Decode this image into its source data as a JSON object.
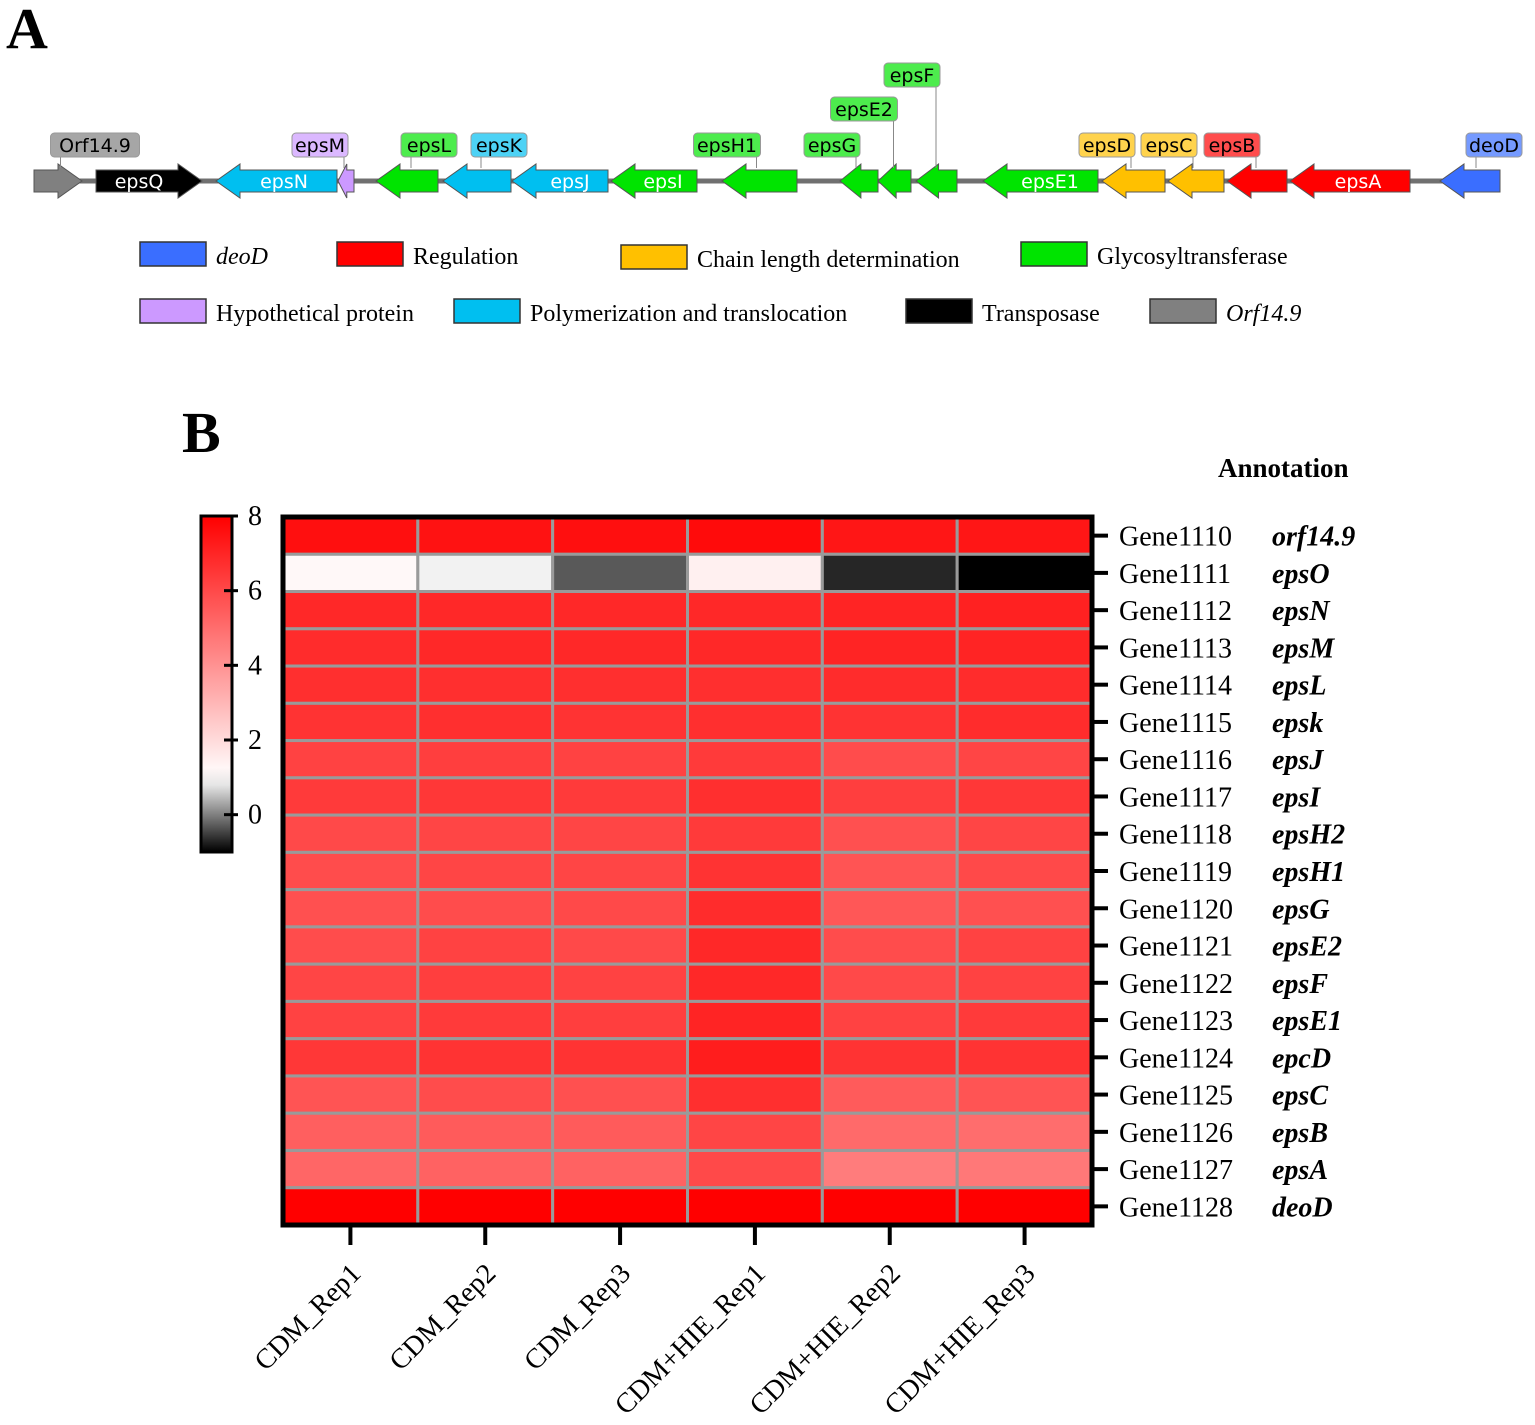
{
  "panels": {
    "a_label": "A",
    "b_label": "B"
  },
  "gene_map": {
    "genes": [
      {
        "name": "Orf14.9",
        "color": "#808080",
        "dir": "right",
        "callout": true
      },
      {
        "name": "epsQ",
        "color": "#000000",
        "dir": "right",
        "callout": false
      },
      {
        "name": "epsN",
        "color": "#00BFF0",
        "dir": "left",
        "callout": false
      },
      {
        "name": "epsM",
        "color": "#CC99FF",
        "dir": "left",
        "callout": true
      },
      {
        "name": "epsL",
        "color": "#00E400",
        "dir": "left",
        "callout": true
      },
      {
        "name": "epsK",
        "color": "#00BFF0",
        "dir": "left",
        "callout": true
      },
      {
        "name": "epsJ",
        "color": "#00BFF0",
        "dir": "left",
        "callout": false
      },
      {
        "name": "epsI",
        "color": "#00E400",
        "dir": "left",
        "callout": false
      },
      {
        "name": "epsH1",
        "color": "#00E400",
        "dir": "left",
        "callout": true
      },
      {
        "name": "epsG",
        "color": "#00E400",
        "dir": "left",
        "callout": true
      },
      {
        "name": "epsE2",
        "color": "#00E400",
        "dir": "left",
        "callout": true
      },
      {
        "name": "epsF",
        "color": "#00E400",
        "dir": "left",
        "callout": true
      },
      {
        "name": "epsE1",
        "color": "#00E400",
        "dir": "left",
        "callout": false
      },
      {
        "name": "epsD",
        "color": "#FFC000",
        "dir": "left",
        "callout": true
      },
      {
        "name": "epsC",
        "color": "#FFC000",
        "dir": "left",
        "callout": true
      },
      {
        "name": "epsB",
        "color": "#FF0000",
        "dir": "left",
        "callout": true
      },
      {
        "name": "epsA",
        "color": "#FF0000",
        "dir": "left",
        "callout": false
      },
      {
        "name": "deoD",
        "color": "#3A6EFF",
        "dir": "left",
        "callout": true
      }
    ],
    "legend": [
      {
        "label": "deoD",
        "color": "#3A6EFF",
        "italic": true
      },
      {
        "label": "Regulation",
        "color": "#FF0000",
        "italic": false
      },
      {
        "label": "Chain length determination",
        "color": "#FFC000",
        "italic": false
      },
      {
        "label": "Glycosyltransferase",
        "color": "#00E400",
        "italic": false
      },
      {
        "label": "Hypothetical protein",
        "color": "#CC99FF",
        "italic": false
      },
      {
        "label": "Polymerization and translocation",
        "color": "#00BFF0",
        "italic": false
      },
      {
        "label": "Transposase",
        "color": "#000000",
        "italic": false
      },
      {
        "label": "Orf14.9",
        "color": "#808080",
        "italic": true
      }
    ]
  },
  "chart_data": {
    "type": "heatmap",
    "title": "",
    "annotation_title": "Annotation",
    "colorbar": {
      "min": -1,
      "max": 8,
      "ticks": [
        0,
        2,
        4,
        6,
        8
      ],
      "low_color": "#000000",
      "mid_value": 1,
      "mid_color": "#FFFFFF",
      "high_color": "#FF0000"
    },
    "columns": [
      "CDM_Rep1",
      "CDM_Rep2",
      "CDM_Rep3",
      "CDM+HIE_Rep1",
      "CDM+HIE_Rep2",
      "CDM+HIE_Rep3"
    ],
    "rows": [
      "Gene1110",
      "Gene1111",
      "Gene1112",
      "Gene1113",
      "Gene1114",
      "Gene1115",
      "Gene1116",
      "Gene1117",
      "Gene1118",
      "Gene1119",
      "Gene1120",
      "Gene1121",
      "Gene1122",
      "Gene1123",
      "Gene1124",
      "Gene1125",
      "Gene1126",
      "Gene1127",
      "Gene1128"
    ],
    "annotations": [
      "orf14.9",
      "epsO",
      "epsN",
      "epsM",
      "epsL",
      "epsk",
      "epsJ",
      "epsI",
      "epsH2",
      "epsH1",
      "epsG",
      "epsE2",
      "epsF",
      "epsE1",
      "epcD",
      "epsC",
      "epsB",
      "epsA",
      "deoD"
    ],
    "values": [
      [
        7.6,
        7.5,
        7.6,
        7.7,
        7.4,
        7.4
      ],
      [
        1.2,
        0.9,
        -0.3,
        1.4,
        -0.7,
        -1.0
      ],
      [
        6.9,
        6.9,
        6.9,
        6.9,
        7.0,
        7.1
      ],
      [
        6.8,
        6.9,
        6.9,
        6.9,
        7.0,
        7.0
      ],
      [
        6.7,
        6.7,
        6.7,
        6.7,
        6.8,
        6.8
      ],
      [
        6.6,
        6.7,
        6.6,
        6.7,
        6.6,
        6.8
      ],
      [
        6.2,
        6.3,
        6.2,
        6.4,
        5.9,
        6.1
      ],
      [
        6.4,
        6.5,
        6.4,
        6.7,
        6.3,
        6.5
      ],
      [
        6.0,
        6.1,
        6.1,
        6.4,
        5.8,
        6.1
      ],
      [
        5.9,
        6.1,
        6.1,
        6.6,
        5.7,
        6.0
      ],
      [
        5.8,
        5.9,
        6.0,
        6.8,
        5.6,
        5.8
      ],
      [
        5.9,
        6.2,
        6.0,
        6.9,
        5.9,
        6.2
      ],
      [
        6.1,
        6.3,
        6.2,
        6.9,
        6.0,
        6.2
      ],
      [
        6.2,
        6.4,
        6.3,
        7.0,
        6.2,
        6.4
      ],
      [
        6.5,
        6.6,
        6.6,
        7.2,
        6.6,
        6.6
      ],
      [
        5.7,
        5.9,
        5.8,
        6.7,
        5.5,
        5.7
      ],
      [
        5.4,
        5.5,
        5.5,
        6.1,
        5.1,
        5.0
      ],
      [
        5.2,
        5.3,
        5.3,
        6.0,
        4.6,
        4.7
      ],
      [
        8.0,
        8.0,
        8.0,
        8.0,
        8.0,
        8.0
      ]
    ]
  }
}
